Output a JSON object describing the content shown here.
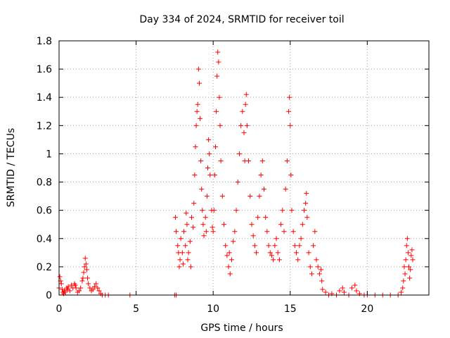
{
  "chart_data": {
    "type": "scatter",
    "title": "Day 334 of 2024, SRMTID for receiver toil",
    "xlabel": "GPS time / hours",
    "ylabel": "SRMTID / TECUs",
    "xlim": [
      0,
      24
    ],
    "ylim": [
      0,
      1.8
    ],
    "xticks": [
      "0",
      "5",
      "10",
      "15",
      "20"
    ],
    "yticks": [
      "0",
      "0.2",
      "0.4",
      "0.6",
      "0.8",
      "1",
      "1.2",
      "1.4",
      "1.6",
      "1.8"
    ],
    "grid": true,
    "marker": "plus",
    "color": "#ff0000",
    "series": [
      {
        "points": [
          [
            0.0,
            0.05
          ],
          [
            0.05,
            0.13
          ],
          [
            0.1,
            0.1
          ],
          [
            0.15,
            0.08
          ],
          [
            0.2,
            0.04
          ],
          [
            0.25,
            0.02
          ],
          [
            0.3,
            0.01
          ],
          [
            0.35,
            0.03
          ],
          [
            0.4,
            0.02
          ],
          [
            0.5,
            0.05
          ],
          [
            0.55,
            0.04
          ],
          [
            0.6,
            0.06
          ],
          [
            0.7,
            0.03
          ],
          [
            0.8,
            0.07
          ],
          [
            0.9,
            0.05
          ],
          [
            1.0,
            0.08
          ],
          [
            1.05,
            0.07
          ],
          [
            1.1,
            0.05
          ],
          [
            1.2,
            0.02
          ],
          [
            1.3,
            0.03
          ],
          [
            1.4,
            0.05
          ],
          [
            1.5,
            0.1
          ],
          [
            1.55,
            0.12
          ],
          [
            1.6,
            0.16
          ],
          [
            1.65,
            0.2
          ],
          [
            1.7,
            0.26
          ],
          [
            1.75,
            0.22
          ],
          [
            1.8,
            0.18
          ],
          [
            1.85,
            0.12
          ],
          [
            1.9,
            0.08
          ],
          [
            2.0,
            0.05
          ],
          [
            2.1,
            0.03
          ],
          [
            2.2,
            0.04
          ],
          [
            2.3,
            0.06
          ],
          [
            2.4,
            0.08
          ],
          [
            2.5,
            0.05
          ],
          [
            2.6,
            0.03
          ],
          [
            2.7,
            0.01
          ],
          [
            2.8,
            0.0
          ],
          [
            3.0,
            0.0
          ],
          [
            3.2,
            0.0
          ],
          [
            4.6,
            0.0
          ],
          [
            7.5,
            0.0
          ],
          [
            7.6,
            0.0
          ],
          [
            7.55,
            0.55
          ],
          [
            7.6,
            0.45
          ],
          [
            7.7,
            0.35
          ],
          [
            7.75,
            0.3
          ],
          [
            7.8,
            0.2
          ],
          [
            7.85,
            0.25
          ],
          [
            7.9,
            0.4
          ],
          [
            8.0,
            0.3
          ],
          [
            8.05,
            0.22
          ],
          [
            8.1,
            0.45
          ],
          [
            8.2,
            0.35
          ],
          [
            8.25,
            0.58
          ],
          [
            8.3,
            0.5
          ],
          [
            8.35,
            0.25
          ],
          [
            8.4,
            0.3
          ],
          [
            8.5,
            0.38
          ],
          [
            8.55,
            0.2
          ],
          [
            8.6,
            0.55
          ],
          [
            8.7,
            0.48
          ],
          [
            8.75,
            0.65
          ],
          [
            8.8,
            0.85
          ],
          [
            8.85,
            1.05
          ],
          [
            8.9,
            1.2
          ],
          [
            8.95,
            1.3
          ],
          [
            9.0,
            1.35
          ],
          [
            9.05,
            1.6
          ],
          [
            9.1,
            1.5
          ],
          [
            9.15,
            1.25
          ],
          [
            9.2,
            0.95
          ],
          [
            9.25,
            0.75
          ],
          [
            9.3,
            0.6
          ],
          [
            9.35,
            0.5
          ],
          [
            9.4,
            0.42
          ],
          [
            9.5,
            0.55
          ],
          [
            9.55,
            0.45
          ],
          [
            9.6,
            0.7
          ],
          [
            9.65,
            0.9
          ],
          [
            9.7,
            1.1
          ],
          [
            9.75,
            1.0
          ],
          [
            9.8,
            0.85
          ],
          [
            9.9,
            0.6
          ],
          [
            9.95,
            0.48
          ],
          [
            10.0,
            0.45
          ],
          [
            10.05,
            0.6
          ],
          [
            10.1,
            0.85
          ],
          [
            10.15,
            1.05
          ],
          [
            10.2,
            1.3
          ],
          [
            10.25,
            1.55
          ],
          [
            10.3,
            1.72
          ],
          [
            10.35,
            1.65
          ],
          [
            10.4,
            1.4
          ],
          [
            10.45,
            1.2
          ],
          [
            10.5,
            0.95
          ],
          [
            10.6,
            0.7
          ],
          [
            10.7,
            0.5
          ],
          [
            10.8,
            0.35
          ],
          [
            10.9,
            0.28
          ],
          [
            11.0,
            0.2
          ],
          [
            11.05,
            0.3
          ],
          [
            11.1,
            0.15
          ],
          [
            11.2,
            0.25
          ],
          [
            11.3,
            0.38
          ],
          [
            11.4,
            0.45
          ],
          [
            11.5,
            0.6
          ],
          [
            11.6,
            0.8
          ],
          [
            11.7,
            1.0
          ],
          [
            11.8,
            1.2
          ],
          [
            11.9,
            1.3
          ],
          [
            12.0,
            1.15
          ],
          [
            12.05,
            0.95
          ],
          [
            12.1,
            1.35
          ],
          [
            12.15,
            1.42
          ],
          [
            12.2,
            1.2
          ],
          [
            12.3,
            0.95
          ],
          [
            12.4,
            0.7
          ],
          [
            12.5,
            0.5
          ],
          [
            12.6,
            0.42
          ],
          [
            12.7,
            0.35
          ],
          [
            12.8,
            0.3
          ],
          [
            12.9,
            0.55
          ],
          [
            13.0,
            0.7
          ],
          [
            13.1,
            0.85
          ],
          [
            13.2,
            0.95
          ],
          [
            13.3,
            0.75
          ],
          [
            13.4,
            0.55
          ],
          [
            13.5,
            0.45
          ],
          [
            13.6,
            0.35
          ],
          [
            13.7,
            0.3
          ],
          [
            13.8,
            0.28
          ],
          [
            13.9,
            0.25
          ],
          [
            14.0,
            0.35
          ],
          [
            14.1,
            0.4
          ],
          [
            14.2,
            0.3
          ],
          [
            14.3,
            0.25
          ],
          [
            14.4,
            0.5
          ],
          [
            14.5,
            0.6
          ],
          [
            14.6,
            0.45
          ],
          [
            14.7,
            0.75
          ],
          [
            14.8,
            0.95
          ],
          [
            14.9,
            1.3
          ],
          [
            14.95,
            1.4
          ],
          [
            15.0,
            1.2
          ],
          [
            15.05,
            0.85
          ],
          [
            15.1,
            0.6
          ],
          [
            15.2,
            0.45
          ],
          [
            15.3,
            0.35
          ],
          [
            15.4,
            0.3
          ],
          [
            15.5,
            0.25
          ],
          [
            15.6,
            0.35
          ],
          [
            15.7,
            0.4
          ],
          [
            15.8,
            0.5
          ],
          [
            15.9,
            0.6
          ],
          [
            16.0,
            0.65
          ],
          [
            16.05,
            0.72
          ],
          [
            16.1,
            0.55
          ],
          [
            16.2,
            0.3
          ],
          [
            16.3,
            0.2
          ],
          [
            16.4,
            0.15
          ],
          [
            16.5,
            0.35
          ],
          [
            16.6,
            0.45
          ],
          [
            16.7,
            0.25
          ],
          [
            16.8,
            0.2
          ],
          [
            16.9,
            0.15
          ],
          [
            17.0,
            0.18
          ],
          [
            17.05,
            0.1
          ],
          [
            17.1,
            0.04
          ],
          [
            17.3,
            0.02
          ],
          [
            17.5,
            0.0
          ],
          [
            17.7,
            0.01
          ],
          [
            18.0,
            0.0
          ],
          [
            18.2,
            0.03
          ],
          [
            18.4,
            0.05
          ],
          [
            18.5,
            0.02
          ],
          [
            18.8,
            0.0
          ],
          [
            19.0,
            0.05
          ],
          [
            19.2,
            0.07
          ],
          [
            19.3,
            0.03
          ],
          [
            19.5,
            0.01
          ],
          [
            19.8,
            0.0
          ],
          [
            20.0,
            0.0
          ],
          [
            20.5,
            0.0
          ],
          [
            21.0,
            0.0
          ],
          [
            21.5,
            0.0
          ],
          [
            22.0,
            0.0
          ],
          [
            22.2,
            0.02
          ],
          [
            22.3,
            0.05
          ],
          [
            22.35,
            0.1
          ],
          [
            22.4,
            0.2
          ],
          [
            22.45,
            0.15
          ],
          [
            22.5,
            0.25
          ],
          [
            22.55,
            0.35
          ],
          [
            22.6,
            0.4
          ],
          [
            22.65,
            0.3
          ],
          [
            22.7,
            0.2
          ],
          [
            22.75,
            0.12
          ],
          [
            22.8,
            0.18
          ],
          [
            22.85,
            0.28
          ],
          [
            22.9,
            0.32
          ],
          [
            22.95,
            0.25
          ]
        ]
      }
    ]
  }
}
